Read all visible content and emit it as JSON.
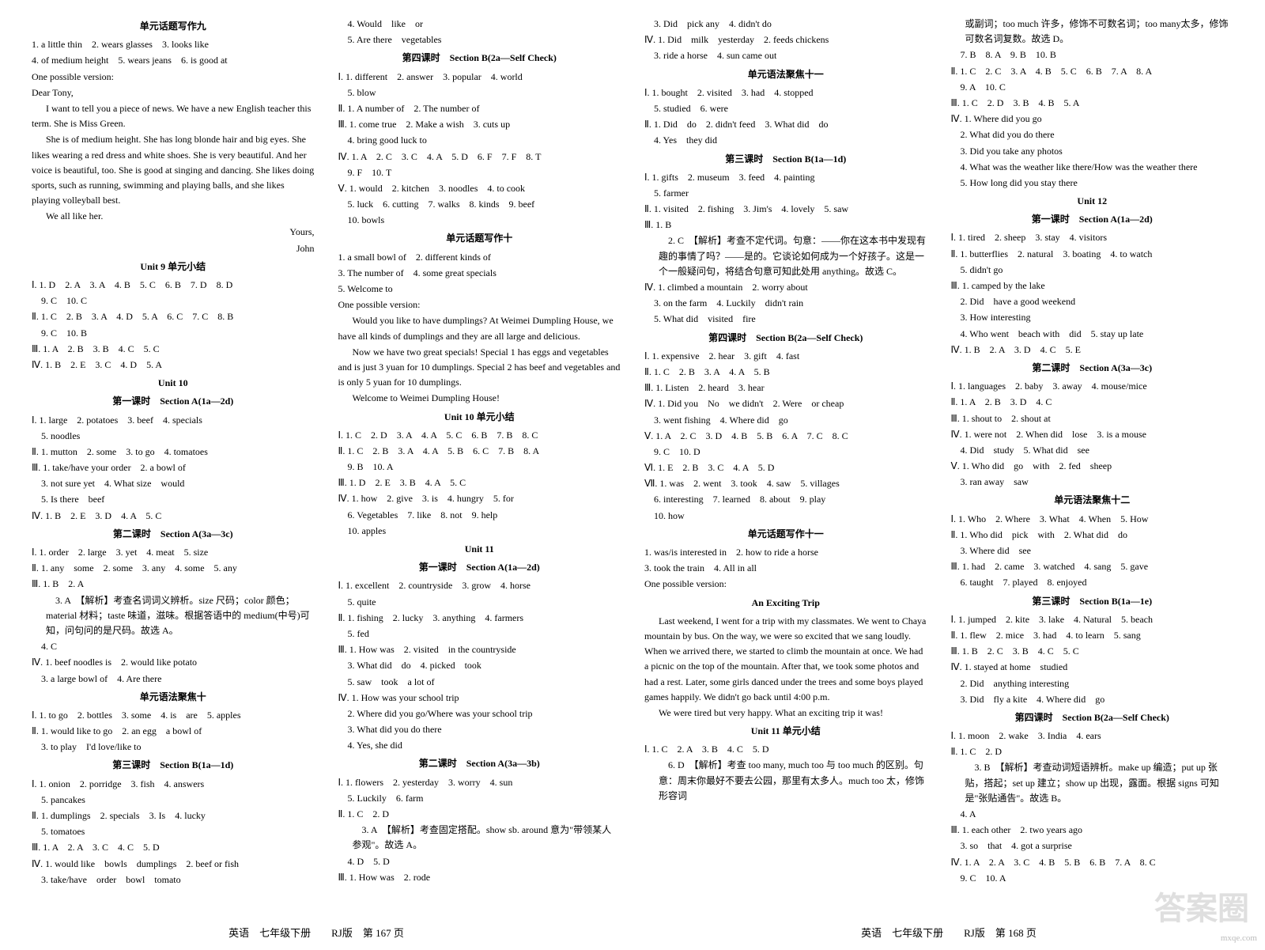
{
  "footer": {
    "left": "英语　七年级下册　　RJ版　第 167 页",
    "right": "英语　七年级下册　　RJ版　第 168 页"
  },
  "watermark": "答案圈",
  "url": "mxqe.com",
  "col1": {
    "title1": "单元话题写作九",
    "l1": "1. a little thin　2. wears glasses　3. looks like",
    "l2": "4. of medium height　5. wears jeans　6. is good at",
    "l3": "One possible version:",
    "l4": "Dear Tony,",
    "l5": "I want to tell you a piece of news. We have a new English teacher this term. She is Miss Green.",
    "l6": "She is of medium height. She has long blonde hair and big eyes. She likes wearing a red dress and white shoes. She is very beautiful. And her voice is beautiful, too. She is good at singing and dancing. She likes doing sports, such as running, swimming and playing balls, and she likes playing volleyball best.",
    "l7": "We all like her.",
    "l8": "Yours,",
    "l9": "John",
    "title2": "Unit 9 单元小结",
    "l10": "Ⅰ. 1. D　2. A　3. A　4. B　5. C　6. B　7. D　8. D",
    "l11": "　9. C　10. C",
    "l12": "Ⅱ. 1. C　2. B　3. A　4. D　5. A　6. C　7. C　8. B",
    "l13": "　9. C　10. B",
    "l14": "Ⅲ. 1. A　2. B　3. B　4. C　5. C",
    "l15": "Ⅳ. 1. B　2. E　3. C　4. D　5. A",
    "title3": "Unit 10",
    "title4": "第一课时　Section A(1a—2d)",
    "l16": "Ⅰ. 1. large　2. potatoes　3. beef　4. specials",
    "l17": "　5. noodles",
    "l18": "Ⅱ. 1. mutton　2. some　3. to go　4. tomatoes",
    "l19": "Ⅲ. 1. take/have your order　2. a bowl of",
    "l20": "　3. not sure yet　4. What size　would",
    "l21": "　5. Is there　beef",
    "l22": "Ⅳ. 1. B　2. E　3. D　4. A　5. C",
    "title5": "第二课时　Section A(3a—3c)",
    "l23": "Ⅰ. 1. order　2. large　3. yet　4. meat　5. size",
    "l24": "Ⅱ. 1. any　some　2. some　3. any　4. some　5. any",
    "l25": "Ⅲ. 1. B　2. A",
    "l26": "　3. A　【解析】考查名词词义辨析。size 尺码；color 颜色；material 材料；taste 味道，滋味。根据答语中的 medium(中号)可知，问句问的是尺码。故选 A。",
    "l27": "　4. C",
    "l28": "Ⅳ. 1. beef noodles is　2. would like potato",
    "l29": "　3. a large bowl of　4. Are there",
    "title6": "单元语法聚焦十",
    "l30": "Ⅰ. 1. to go　2. bottles　3. some　4. is　are　5. apples",
    "l31": "Ⅱ. 1. would like to go　2. an egg　a bowl of",
    "l32": "　3. to play　I'd love/like to",
    "title7": "第三课时　Section B(1a—1d)",
    "l33": "Ⅰ. 1. onion　2. porridge　3. fish　4. answers",
    "l34": "　5. pancakes",
    "l35": "Ⅱ. 1. dumplings　2. specials　3. Is　4. lucky",
    "l36": "　5. tomatoes",
    "l37": "Ⅲ. 1. A　2. A　3. C　4. C　5. D",
    "l38": "Ⅳ. 1. would like　bowls　dumplings　2. beef or fish",
    "l39": "　3. take/have　order　bowl　tomato"
  },
  "col2": {
    "l1": "　4. Would　like　or",
    "l2": "　5. Are there　vegetables",
    "title1": "第四课时　Section B(2a—Self Check)",
    "l3": "Ⅰ. 1. different　2. answer　3. popular　4. world",
    "l4": "　5. blow",
    "l5": "Ⅱ. 1. A number of　2. The number of",
    "l6": "Ⅲ. 1. come true　2. Make a wish　3. cuts up",
    "l7": "　4. bring good luck to",
    "l8": "Ⅳ. 1. A　2. C　3. C　4. A　5. D　6. F　7. F　8. T",
    "l9": "　9. F　10. T",
    "l10": "Ⅴ. 1. would　2. kitchen　3. noodles　4. to cook",
    "l11": "　5. luck　6. cutting　7. walks　8. kinds　9. beef",
    "l12": "　10. bowls",
    "title2": "单元话题写作十",
    "l13": "1. a small bowl of　2. different kinds of",
    "l14": "3. The number of　4. some great specials",
    "l15": "5. Welcome to",
    "l16": "One possible version:",
    "l17": "Would you like to have dumplings? At Weimei Dumpling House, we have all kinds of dumplings and they are all large and delicious.",
    "l18": "Now we have two great specials! Special 1 has eggs and vegetables and is just 3 yuan for 10 dumplings. Special 2 has beef and vegetables and is only 5 yuan for 10 dumplings.",
    "l19": "Welcome to Weimei Dumpling House!",
    "title3": "Unit 10 单元小结",
    "l20": "Ⅰ. 1. C　2. D　3. A　4. A　5. C　6. B　7. B　8. C",
    "l21": "Ⅱ. 1. C　2. B　3. A　4. A　5. B　6. C　7. B　8. A",
    "l22": "　9. B　10. A",
    "l23": "Ⅲ. 1. D　2. E　3. B　4. A　5. C",
    "l24": "Ⅳ. 1. how　2. give　3. is　4. hungry　5. for",
    "l25": "　6. Vegetables　7. like　8. not　9. help",
    "l26": "　10. apples",
    "title4": "Unit 11",
    "title5": "第一课时　Section A(1a—2d)",
    "l27": "Ⅰ. 1. excellent　2. countryside　3. grow　4. horse",
    "l28": "　5. quite",
    "l29": "Ⅱ. 1. fishing　2. lucky　3. anything　4. farmers",
    "l30": "　5. fed",
    "l31": "Ⅲ. 1. How was　2. visited　in the countryside",
    "l32": "　3. What did　do　4. picked　took",
    "l33": "　5. saw　took　a lot of",
    "l34": "Ⅳ. 1. How was your school trip",
    "l35": "　2. Where did you go/Where was your school trip",
    "l36": "　3. What did you do there",
    "l37": "　4. Yes, she did",
    "title6": "第二课时　Section A(3a—3b)",
    "l38": "Ⅰ. 1. flowers　2. yesterday　3. worry　4. sun",
    "l39": "　5. Luckily　6. farm",
    "l40": "Ⅱ. 1. C　2. D",
    "l41": "　3. A　【解析】考查固定搭配。show sb. around 意为\"带领某人参观\"。故选 A。",
    "l42": "　4. D　5. D",
    "l43": "Ⅲ. 1. How was　2. rode"
  },
  "col3": {
    "l1": "　3. Did　pick any　4. didn't do",
    "l2": "Ⅳ. 1. Did　milk　yesterday　2. feeds chickens",
    "l3": "　3. ride a horse　4. sun came out",
    "title1": "单元语法聚焦十一",
    "l4": "Ⅰ. 1. bought　2. visited　3. had　4. stopped",
    "l5": "　5. studied　6. were",
    "l6": "Ⅱ. 1. Did　do　2. didn't feed　3. What did　do",
    "l7": "　4. Yes　they did",
    "title2": "第三课时　Section B(1a—1d)",
    "l8": "Ⅰ. 1. gifts　2. museum　3. feed　4. painting",
    "l9": "　5. farmer",
    "l10": "Ⅱ. 1. visited　2. fishing　3. Jim's　4. lovely　5. saw",
    "l11": "Ⅲ. 1. B",
    "l12": "　2. C　【解析】考查不定代词。句意：——你在这本书中发现有趣的事情了吗？——是的。它谈论如何成为一个好孩子。这是一个一般疑问句，将结合句意可知此处用 anything。故选 C。",
    "l13": "Ⅳ. 1. climbed a mountain　2. worry about",
    "l14": "　3. on the farm　4. Luckily　didn't rain",
    "l15": "　5. What did　visited　fire",
    "title3": "第四课时　Section B(2a—Self Check)",
    "l16": "Ⅰ. 1. expensive　2. hear　3. gift　4. fast",
    "l17": "Ⅱ. 1. C　2. B　3. A　4. A　5. B",
    "l18": "Ⅲ. 1. Listen　2. heard　3. hear",
    "l19": "Ⅳ. 1. Did you　No　we didn't　2. Were　or cheap",
    "l20": "　3. went fishing　4. Where did　go",
    "l21": "Ⅴ. 1. A　2. C　3. D　4. B　5. B　6. A　7. C　8. C",
    "l22": "　9. C　10. D",
    "l23": "Ⅵ. 1. E　2. B　3. C　4. A　5. D",
    "l24": "Ⅶ. 1. was　2. went　3. took　4. saw　5. villages",
    "l25": "　6. interesting　7. learned　8. about　9. play",
    "l26": "　10. how",
    "title4": "单元话题写作十一",
    "l27": "1. was/is interested in　2. how to ride a horse",
    "l28": "3. took the train　4. All in all",
    "l29": "One possible version:",
    "title5": "An Exciting Trip",
    "l30": "Last weekend, I went for a trip with my classmates. We went to Chaya mountain by bus. On the way, we were so excited that we sang loudly. When we arrived there, we started to climb the mountain at once. We had a picnic on the top of the mountain. After that, we took some photos and had a rest. Later, some girls danced under the trees and some boys played games happily. We didn't go back until 4:00 p.m.",
    "l31": "We were tired but very happy. What an exciting trip it was!",
    "title6": "Unit 11 单元小结",
    "l32": "Ⅰ. 1. C　2. A　3. B　4. C　5. D",
    "l33": "　6. D　【解析】考查 too many, much too 与 too much 的区别。句意：周末你最好不要去公园，那里有太多人。much too 太，修饰形容词"
  },
  "col4": {
    "l1": "或副词；too much 许多，修饰不可数名词；too many太多，修饰可数名词复数。故选 D。",
    "l2": "　7. B　8. A　9. B　10. B",
    "l3": "Ⅱ. 1. C　2. C　3. A　4. B　5. C　6. B　7. A　8. A",
    "l4": "　9. A　10. C",
    "l5": "Ⅲ. 1. C　2. D　3. B　4. B　5. A",
    "l6": "Ⅳ. 1. Where did you go",
    "l7": "　2. What did you do there",
    "l8": "　3. Did you take any photos",
    "l9": "　4. What was the weather like there/How was the weather there",
    "l10": "　5. How long did you stay there",
    "title1": "Unit 12",
    "title2": "第一课时　Section A(1a—2d)",
    "l11": "Ⅰ. 1. tired　2. sheep　3. stay　4. visitors",
    "l12": "Ⅱ. 1. butterflies　2. natural　3. boating　4. to watch",
    "l13": "　5. didn't go",
    "l14": "Ⅲ. 1. camped by the lake",
    "l15": "　2. Did　have a good weekend",
    "l16": "　3. How interesting",
    "l17": "　4. Who went　beach with　did　5. stay up late",
    "l18": "Ⅳ. 1. B　2. A　3. D　4. C　5. E",
    "title3": "第二课时　Section A(3a—3c)",
    "l19": "Ⅰ. 1. languages　2. baby　3. away　4. mouse/mice",
    "l20": "Ⅱ. 1. A　2. B　3. D　4. C",
    "l21": "Ⅲ. 1. shout to　2. shout at",
    "l22": "Ⅳ. 1. were not　2. When did　lose　3. is a mouse",
    "l23": "　4. Did　study　5. What did　see",
    "l24": "Ⅴ. 1. Who did　go　with　2. fed　sheep",
    "l25": "　3. ran away　saw",
    "title4": "单元语法聚焦十二",
    "l26": "Ⅰ. 1. Who　2. Where　3. What　4. When　5. How",
    "l27": "Ⅱ. 1. Who did　pick　with　2. What did　do",
    "l28": "　3. Where did　see",
    "l29": "Ⅲ. 1. had　2. came　3. watched　4. sang　5. gave",
    "l30": "　6. taught　7. played　8. enjoyed",
    "title5": "第三课时　Section B(1a—1e)",
    "l31": "Ⅰ. 1. jumped　2. kite　3. lake　4. Natural　5. beach",
    "l32": "Ⅱ. 1. flew　2. mice　3. had　4. to learn　5. sang",
    "l33": "Ⅲ. 1. B　2. C　3. B　4. C　5. C",
    "l34": "Ⅳ. 1. stayed at home　studied",
    "l35": "　2. Did　anything interesting",
    "l36": "　3. Did　fly a kite　4. Where did　go",
    "title6": "第四课时　Section B(2a—Self Check)",
    "l37": "Ⅰ. 1. moon　2. wake　3. India　4. ears",
    "l38": "Ⅱ. 1. C　2. D",
    "l39": "　3. B　【解析】考查动词短语辨析。make up 编造；put up 张贴，搭起；set up 建立；show up 出现，露面。根据 signs 可知是\"张贴通告\"。故选 B。",
    "l40": "　4. A",
    "l41": "Ⅲ. 1. each other　2. two years ago",
    "l42": "　3. so　that　4. got a surprise",
    "l43": "Ⅳ. 1. A　2. A　3. C　4. B　5. B　6. B　7. A　8. C",
    "l44": "　9. C　10. A"
  }
}
